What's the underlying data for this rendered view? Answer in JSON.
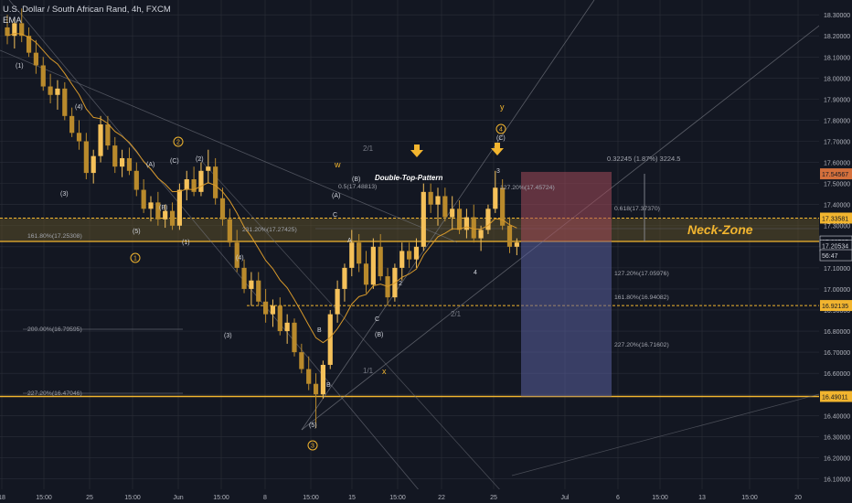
{
  "header": {
    "symbol_line": "U.S. Dollar / South African Rand, 4h, FXCM",
    "indicator": "EMA"
  },
  "colors": {
    "background": "#131722",
    "up_candle": "#f5c15a",
    "down_candle": "#b98a2c",
    "ema": "#d99a2b",
    "accent": "#f2b52f",
    "grid": "#2a2e39"
  },
  "chart_data": {
    "type": "candlestick",
    "ylim": [
      16.05,
      18.37
    ],
    "y_ticks": [
      "18.30000",
      "18.20000",
      "18.10000",
      "18.00000",
      "17.90000",
      "17.80000",
      "17.70000",
      "17.60000",
      "17.50000",
      "17.40000",
      "17.30000",
      "17.20000",
      "17.10000",
      "17.00000",
      "16.90000",
      "16.80000",
      "16.70000",
      "16.60000",
      "16.50000",
      "16.40000",
      "16.30000",
      "16.20000",
      "16.10000"
    ],
    "x_ticks": [
      "18",
      "15:00",
      "25",
      "15:00",
      "Jun",
      "15:00",
      "8",
      "15:00",
      "15",
      "15:00",
      "22",
      "25",
      "Jul",
      "6",
      "15:00",
      "13",
      "15:00",
      "20"
    ],
    "price_badges": [
      {
        "label": "17.54567",
        "value": 17.54567
      },
      {
        "label": "17.33581",
        "value": 17.33581
      },
      {
        "label": "17.22505",
        "value": 17.22505
      },
      {
        "label": "17.20534",
        "value": 17.20534
      },
      {
        "label": "56:47",
        "value": 17.16
      },
      {
        "label": "16.92135",
        "value": 16.92135
      },
      {
        "label": "16.49011",
        "value": 16.49011
      }
    ],
    "levels": [
      {
        "label": "Neck-Zone",
        "low": 17.22505,
        "high": 17.33581
      },
      {
        "label": "16.92135",
        "value": 16.92135
      },
      {
        "label": "16.49011",
        "value": 16.49011
      }
    ],
    "fib_labels": [
      "161.80%(17.25308)",
      "200.00%(16.79595)",
      "227.20%(16.47046)",
      "231.20%(17.27425)",
      "0.5(17.48813)",
      "127.20%(17.45724)",
      "0.618(17.37370)",
      "127.20%(17.05976)",
      "161.80%(16.94082)",
      "227.20%(16.71602)"
    ],
    "measure_label": "0.32245 (1.87%) 3224.5",
    "annotations": {
      "double_top": "Double-Top-Pattern",
      "neck_zone": "Neck-Zone",
      "angle_labels": [
        "2/1",
        "2/1",
        "1/1"
      ],
      "wave_labels": [
        "(1)",
        "(3)",
        "(4)",
        "(5)",
        "(A)",
        "(B)",
        "(C)",
        "(2)",
        "(1)",
        "(3)",
        "(4)",
        "(5)",
        "(A)",
        "(B)",
        "C",
        "B",
        "A",
        "B",
        "C",
        "(B)",
        "(C)",
        "2",
        "4",
        "3",
        "w",
        "x",
        "y",
        "1",
        "2",
        "3",
        "4"
      ],
      "circled": [
        "1",
        "2",
        "3",
        "4"
      ]
    },
    "series": [
      {
        "name": "USD/ZAR",
        "values": [
          {
            "o": 18.24,
            "h": 18.3,
            "l": 18.16,
            "c": 18.2
          },
          {
            "o": 18.2,
            "h": 18.28,
            "l": 18.14,
            "c": 18.26
          },
          {
            "o": 18.26,
            "h": 18.33,
            "l": 18.17,
            "c": 18.2
          },
          {
            "o": 18.2,
            "h": 18.24,
            "l": 18.1,
            "c": 18.12
          },
          {
            "o": 18.12,
            "h": 18.18,
            "l": 18.02,
            "c": 18.06
          },
          {
            "o": 18.06,
            "h": 18.1,
            "l": 17.94,
            "c": 17.96
          },
          {
            "o": 17.96,
            "h": 18.02,
            "l": 17.88,
            "c": 17.92
          },
          {
            "o": 17.92,
            "h": 17.99,
            "l": 17.85,
            "c": 17.95
          },
          {
            "o": 17.95,
            "h": 17.98,
            "l": 17.8,
            "c": 17.82
          },
          {
            "o": 17.82,
            "h": 17.86,
            "l": 17.72,
            "c": 17.74
          },
          {
            "o": 17.74,
            "h": 17.8,
            "l": 17.66,
            "c": 17.7
          },
          {
            "o": 17.7,
            "h": 17.74,
            "l": 17.52,
            "c": 17.55
          },
          {
            "o": 17.55,
            "h": 17.66,
            "l": 17.5,
            "c": 17.63
          },
          {
            "o": 17.63,
            "h": 17.82,
            "l": 17.6,
            "c": 17.78
          },
          {
            "o": 17.78,
            "h": 17.82,
            "l": 17.66,
            "c": 17.68
          },
          {
            "o": 17.68,
            "h": 17.72,
            "l": 17.55,
            "c": 17.58
          },
          {
            "o": 17.58,
            "h": 17.66,
            "l": 17.53,
            "c": 17.62
          },
          {
            "o": 17.62,
            "h": 17.67,
            "l": 17.54,
            "c": 17.56
          },
          {
            "o": 17.56,
            "h": 17.6,
            "l": 17.44,
            "c": 17.47
          },
          {
            "o": 17.47,
            "h": 17.52,
            "l": 17.36,
            "c": 17.38
          },
          {
            "o": 17.38,
            "h": 17.44,
            "l": 17.32,
            "c": 17.41
          },
          {
            "o": 17.41,
            "h": 17.46,
            "l": 17.3,
            "c": 17.33
          },
          {
            "o": 17.33,
            "h": 17.4,
            "l": 17.29,
            "c": 17.37
          },
          {
            "o": 17.37,
            "h": 17.41,
            "l": 17.28,
            "c": 17.3
          },
          {
            "o": 17.3,
            "h": 17.5,
            "l": 17.28,
            "c": 17.47
          },
          {
            "o": 17.47,
            "h": 17.56,
            "l": 17.42,
            "c": 17.52
          },
          {
            "o": 17.52,
            "h": 17.58,
            "l": 17.44,
            "c": 17.46
          },
          {
            "o": 17.46,
            "h": 17.6,
            "l": 17.44,
            "c": 17.56
          },
          {
            "o": 17.56,
            "h": 17.66,
            "l": 17.5,
            "c": 17.58
          },
          {
            "o": 17.58,
            "h": 17.62,
            "l": 17.4,
            "c": 17.43
          },
          {
            "o": 17.43,
            "h": 17.48,
            "l": 17.3,
            "c": 17.33
          },
          {
            "o": 17.33,
            "h": 17.38,
            "l": 17.2,
            "c": 17.22
          },
          {
            "o": 17.22,
            "h": 17.28,
            "l": 17.08,
            "c": 17.1
          },
          {
            "o": 17.1,
            "h": 17.14,
            "l": 16.98,
            "c": 17.0
          },
          {
            "o": 17.0,
            "h": 17.08,
            "l": 16.92,
            "c": 17.04
          },
          {
            "o": 17.04,
            "h": 17.08,
            "l": 16.92,
            "c": 16.94
          },
          {
            "o": 16.94,
            "h": 17.0,
            "l": 16.84,
            "c": 16.88
          },
          {
            "o": 16.88,
            "h": 16.95,
            "l": 16.82,
            "c": 16.92
          },
          {
            "o": 16.92,
            "h": 16.96,
            "l": 16.78,
            "c": 16.8
          },
          {
            "o": 16.8,
            "h": 16.88,
            "l": 16.74,
            "c": 16.84
          },
          {
            "o": 16.84,
            "h": 16.86,
            "l": 16.68,
            "c": 16.7
          },
          {
            "o": 16.7,
            "h": 16.74,
            "l": 16.6,
            "c": 16.62
          },
          {
            "o": 16.62,
            "h": 16.68,
            "l": 16.52,
            "c": 16.55
          },
          {
            "o": 16.55,
            "h": 16.6,
            "l": 16.34,
            "c": 16.5
          },
          {
            "o": 16.5,
            "h": 16.66,
            "l": 16.48,
            "c": 16.64
          },
          {
            "o": 16.64,
            "h": 16.9,
            "l": 16.62,
            "c": 16.88
          },
          {
            "o": 16.88,
            "h": 17.04,
            "l": 16.84,
            "c": 17.0
          },
          {
            "o": 17.0,
            "h": 17.12,
            "l": 16.94,
            "c": 17.1
          },
          {
            "o": 17.1,
            "h": 17.28,
            "l": 17.06,
            "c": 17.22
          },
          {
            "o": 17.22,
            "h": 17.26,
            "l": 17.08,
            "c": 17.12
          },
          {
            "o": 17.12,
            "h": 17.18,
            "l": 16.98,
            "c": 17.02
          },
          {
            "o": 17.02,
            "h": 17.24,
            "l": 17.0,
            "c": 17.2
          },
          {
            "o": 17.2,
            "h": 17.26,
            "l": 17.04,
            "c": 17.06
          },
          {
            "o": 17.06,
            "h": 17.1,
            "l": 16.92,
            "c": 16.96
          },
          {
            "o": 16.96,
            "h": 17.12,
            "l": 16.94,
            "c": 17.1
          },
          {
            "o": 17.1,
            "h": 17.22,
            "l": 17.04,
            "c": 17.18
          },
          {
            "o": 17.18,
            "h": 17.22,
            "l": 17.1,
            "c": 17.14
          },
          {
            "o": 17.14,
            "h": 17.24,
            "l": 17.1,
            "c": 17.2
          },
          {
            "o": 17.2,
            "h": 17.5,
            "l": 17.18,
            "c": 17.46
          },
          {
            "o": 17.46,
            "h": 17.5,
            "l": 17.36,
            "c": 17.4
          },
          {
            "o": 17.4,
            "h": 17.48,
            "l": 17.3,
            "c": 17.44
          },
          {
            "o": 17.44,
            "h": 17.48,
            "l": 17.32,
            "c": 17.34
          },
          {
            "o": 17.34,
            "h": 17.44,
            "l": 17.28,
            "c": 17.38
          },
          {
            "o": 17.38,
            "h": 17.42,
            "l": 17.26,
            "c": 17.28
          },
          {
            "o": 17.28,
            "h": 17.38,
            "l": 17.24,
            "c": 17.34
          },
          {
            "o": 17.34,
            "h": 17.4,
            "l": 17.22,
            "c": 17.24
          },
          {
            "o": 17.24,
            "h": 17.3,
            "l": 17.18,
            "c": 17.28
          },
          {
            "o": 17.28,
            "h": 17.4,
            "l": 17.26,
            "c": 17.38
          },
          {
            "o": 17.38,
            "h": 17.56,
            "l": 17.36,
            "c": 17.48
          },
          {
            "o": 17.48,
            "h": 17.52,
            "l": 17.28,
            "c": 17.3
          },
          {
            "o": 17.3,
            "h": 17.34,
            "l": 17.17,
            "c": 17.2
          },
          {
            "o": 17.2,
            "h": 17.24,
            "l": 17.16,
            "c": 17.22
          }
        ]
      }
    ]
  }
}
